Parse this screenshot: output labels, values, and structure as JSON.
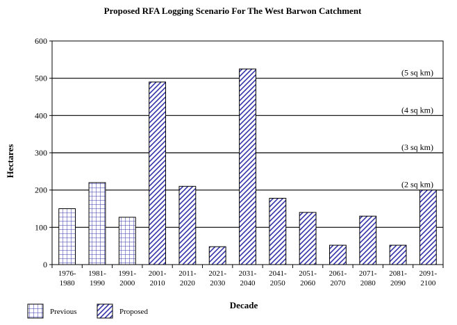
{
  "chart_data": {
    "type": "bar",
    "title": "Proposed RFA Logging Scenario For The West Barwon Catchment",
    "xlabel": "Decade",
    "ylabel": "Hectares",
    "ylim": [
      0,
      600
    ],
    "yticks": [
      0,
      100,
      200,
      300,
      400,
      500,
      600
    ],
    "grid": true,
    "legend_position": "bottom-left",
    "categories": [
      [
        "1976-",
        "1980"
      ],
      [
        "1981-",
        "1990"
      ],
      [
        "1991-",
        "2000"
      ],
      [
        "2001-",
        "2010"
      ],
      [
        "2011-",
        "2020"
      ],
      [
        "2021-",
        "2030"
      ],
      [
        "2031-",
        "2040"
      ],
      [
        "2041-",
        "2050"
      ],
      [
        "2051-",
        "2060"
      ],
      [
        "2061-",
        "2070"
      ],
      [
        "2071-",
        "2080"
      ],
      [
        "2081-",
        "2090"
      ],
      [
        "2091-",
        "2100"
      ]
    ],
    "series": [
      {
        "name": "Previous",
        "pattern": "grid",
        "color": "#3333aa",
        "values": [
          150,
          220,
          127,
          null,
          null,
          null,
          null,
          null,
          null,
          null,
          null,
          null,
          null
        ]
      },
      {
        "name": "Proposed",
        "pattern": "diagonal",
        "color": "#3333aa",
        "values": [
          null,
          null,
          null,
          490,
          210,
          48,
          525,
          178,
          140,
          52,
          130,
          52,
          200
        ]
      }
    ],
    "annotations": [
      {
        "text": "(5 sq km)",
        "y": 500
      },
      {
        "text": "(4 sq km)",
        "y": 400
      },
      {
        "text": "(3 sq km)",
        "y": 300
      },
      {
        "text": "(2 sq km)",
        "y": 200
      }
    ]
  }
}
